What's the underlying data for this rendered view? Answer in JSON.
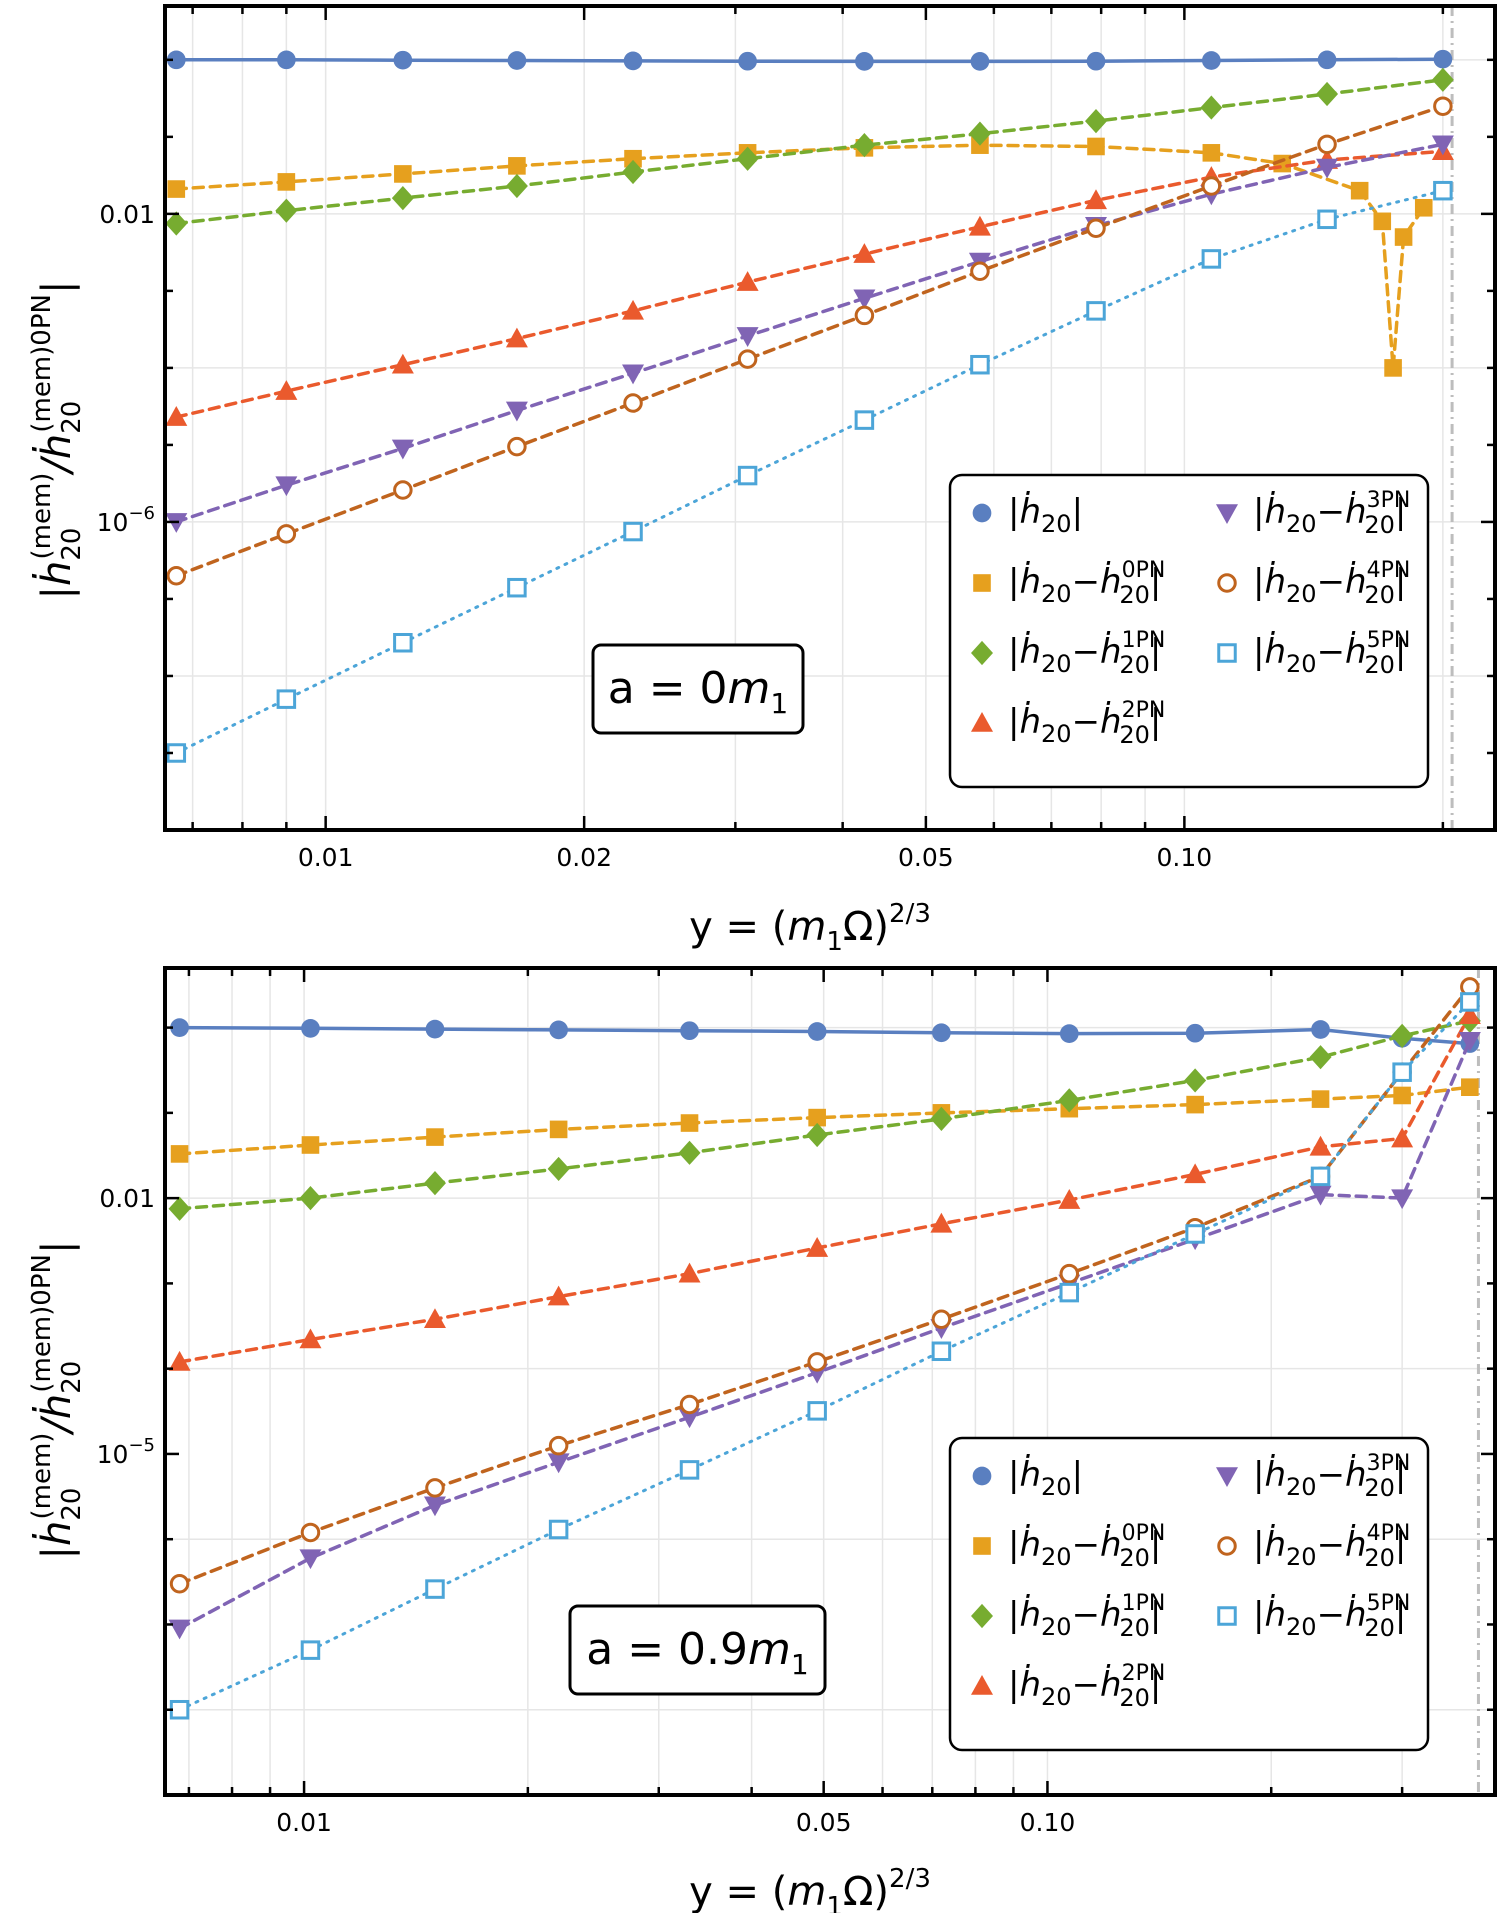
{
  "chart_data": [
    {
      "type": "line",
      "scale": {
        "x": "log",
        "y": "log"
      },
      "xlim": [
        0.0065,
        0.23
      ],
      "ylim": [
        1e-10,
        5
      ],
      "grid": true,
      "xlabel": "y = (m1Ω)^2/3",
      "ylabel": "|ḣ20(mem)/ḣ20(mem)0PN|",
      "xticks": [
        {
          "v": 0.01,
          "label": "0.01"
        },
        {
          "v": 0.02,
          "label": "0.02"
        },
        {
          "v": 0.05,
          "label": "0.05"
        },
        {
          "v": 0.1,
          "label": "0.10"
        }
      ],
      "yticks": [
        {
          "v": 0.01,
          "label": "0.01"
        },
        {
          "v": 1e-06,
          "label": "10^−6"
        }
      ],
      "annotation": "a = 0m1",
      "reference_line_x": 0.205,
      "legend_placement": "bottom-right",
      "series": [
        {
          "name": "|ḣ20|",
          "color": "#5a7fc0",
          "marker": "circle",
          "line": "solid",
          "points": [
            [
              0.0067,
              1.0
            ],
            [
              0.009,
              1.0
            ],
            [
              0.0123,
              0.99
            ],
            [
              0.0167,
              0.98
            ],
            [
              0.0228,
              0.97
            ],
            [
              0.031,
              0.96
            ],
            [
              0.0424,
              0.955
            ],
            [
              0.0578,
              0.955
            ],
            [
              0.0789,
              0.96
            ],
            [
              0.1075,
              0.98
            ],
            [
              0.1466,
              1.0
            ],
            [
              0.2,
              1.02
            ]
          ]
        },
        {
          "name": "|ḣ20−ḣ20^0PN|",
          "color": "#e6a01e",
          "marker": "square",
          "line": "dashed",
          "points": [
            [
              0.0067,
              0.021
            ],
            [
              0.009,
              0.026
            ],
            [
              0.0123,
              0.033
            ],
            [
              0.0167,
              0.042
            ],
            [
              0.0228,
              0.052
            ],
            [
              0.031,
              0.062
            ],
            [
              0.0424,
              0.072
            ],
            [
              0.0578,
              0.078
            ],
            [
              0.0789,
              0.075
            ],
            [
              0.1075,
              0.062
            ],
            [
              0.13,
              0.045
            ],
            [
              0.16,
              0.02
            ],
            [
              0.17,
              0.008
            ],
            [
              0.175,
              0.0001
            ],
            [
              0.18,
              0.005
            ],
            [
              0.19,
              0.012
            ]
          ]
        },
        {
          "name": "|ḣ20−ḣ20^1PN|",
          "color": "#77ac30",
          "marker": "diamond",
          "line": "dashed",
          "points": [
            [
              0.0067,
              0.0075
            ],
            [
              0.009,
              0.011
            ],
            [
              0.0123,
              0.016
            ],
            [
              0.0167,
              0.023
            ],
            [
              0.0228,
              0.035
            ],
            [
              0.031,
              0.052
            ],
            [
              0.0424,
              0.078
            ],
            [
              0.0578,
              0.11
            ],
            [
              0.0789,
              0.16
            ],
            [
              0.1075,
              0.24
            ],
            [
              0.1466,
              0.36
            ],
            [
              0.2,
              0.55
            ]
          ]
        },
        {
          "name": "|ḣ20−ḣ20^2PN|",
          "color": "#ea5a2d",
          "marker": "triangle-up",
          "line": "dashed",
          "points": [
            [
              0.0067,
              2.3e-05
            ],
            [
              0.009,
              5e-05
            ],
            [
              0.0123,
              0.00011
            ],
            [
              0.0167,
              0.00024
            ],
            [
              0.0228,
              0.00055
            ],
            [
              0.031,
              0.0013
            ],
            [
              0.0424,
              0.003
            ],
            [
              0.0578,
              0.0068
            ],
            [
              0.0789,
              0.015
            ],
            [
              0.1075,
              0.03
            ],
            [
              0.1466,
              0.05
            ],
            [
              0.2,
              0.065
            ]
          ]
        },
        {
          "name": "|ḣ20−ḣ20^3PN|",
          "color": "#8064b4",
          "marker": "triangle-down",
          "line": "dashed",
          "points": [
            [
              0.0067,
              1e-06
            ],
            [
              0.009,
              3e-06
            ],
            [
              0.0123,
              9e-06
            ],
            [
              0.0167,
              2.8e-05
            ],
            [
              0.0228,
              8.5e-05
            ],
            [
              0.031,
              0.00026
            ],
            [
              0.0424,
              0.0008
            ],
            [
              0.0578,
              0.0024
            ],
            [
              0.0789,
              0.007
            ],
            [
              0.1075,
              0.018
            ],
            [
              0.1466,
              0.04
            ],
            [
              0.2,
              0.08
            ]
          ]
        },
        {
          "name": "|ḣ20−ḣ20^4PN|",
          "color": "#c0641e",
          "marker": "open-circle",
          "line": "dashed",
          "points": [
            [
              0.0067,
              2e-07
            ],
            [
              0.009,
              7e-07
            ],
            [
              0.0123,
              2.6e-06
            ],
            [
              0.0167,
              9.5e-06
            ],
            [
              0.0228,
              3.5e-05
            ],
            [
              0.031,
              0.00013
            ],
            [
              0.0424,
              0.00048
            ],
            [
              0.0578,
              0.0018
            ],
            [
              0.0789,
              0.0065
            ],
            [
              0.1075,
              0.023
            ],
            [
              0.1466,
              0.08
            ],
            [
              0.2,
              0.25
            ]
          ]
        },
        {
          "name": "|ḣ20−ḣ20^5PN|",
          "color": "#4ca5d8",
          "marker": "open-square",
          "line": "dotted",
          "points": [
            [
              0.0067,
              1e-09
            ],
            [
              0.009,
              5e-09
            ],
            [
              0.0123,
              2.7e-08
            ],
            [
              0.0167,
              1.4e-07
            ],
            [
              0.0228,
              7.5e-07
            ],
            [
              0.031,
              4e-06
            ],
            [
              0.0424,
              2.1e-05
            ],
            [
              0.0578,
              0.00011
            ],
            [
              0.0789,
              0.00055
            ],
            [
              0.1075,
              0.0026
            ],
            [
              0.1466,
              0.0085
            ],
            [
              0.2,
              0.02
            ]
          ]
        }
      ]
    },
    {
      "type": "line",
      "scale": {
        "x": "log",
        "y": "log"
      },
      "xlim": [
        0.0065,
        0.4
      ],
      "ylim": [
        1e-09,
        5
      ],
      "grid": true,
      "xlabel": "y = (m1Ω)^2/3",
      "ylabel": "|ḣ20(mem)/ḣ20(mem)0PN|",
      "xticks": [
        {
          "v": 0.01,
          "label": "0.01"
        },
        {
          "v": 0.05,
          "label": "0.05"
        },
        {
          "v": 0.1,
          "label": "0.10"
        }
      ],
      "yticks": [
        {
          "v": 0.01,
          "label": "0.01"
        },
        {
          "v": 1e-05,
          "label": "10^−5"
        }
      ],
      "annotation": "a = 0.9m1",
      "reference_line_x": 0.38,
      "legend_placement": "bottom-right",
      "series": [
        {
          "name": "|ḣ20|",
          "color": "#5a7fc0",
          "marker": "circle",
          "line": "solid",
          "points": [
            [
              0.0068,
              1.0
            ],
            [
              0.0102,
              0.98
            ],
            [
              0.015,
              0.96
            ],
            [
              0.022,
              0.94
            ],
            [
              0.033,
              0.92
            ],
            [
              0.049,
              0.9
            ],
            [
              0.072,
              0.87
            ],
            [
              0.107,
              0.85
            ],
            [
              0.158,
              0.86
            ],
            [
              0.233,
              0.95
            ],
            [
              0.3,
              0.75
            ],
            [
              0.37,
              0.65
            ]
          ]
        },
        {
          "name": "|ḣ20−ḣ20^0PN|",
          "color": "#e6a01e",
          "marker": "square",
          "line": "dashed",
          "points": [
            [
              0.0068,
              0.033
            ],
            [
              0.0102,
              0.042
            ],
            [
              0.015,
              0.052
            ],
            [
              0.022,
              0.064
            ],
            [
              0.033,
              0.076
            ],
            [
              0.049,
              0.088
            ],
            [
              0.072,
              0.1
            ],
            [
              0.107,
              0.112
            ],
            [
              0.158,
              0.125
            ],
            [
              0.233,
              0.145
            ],
            [
              0.3,
              0.16
            ],
            [
              0.37,
              0.2
            ]
          ]
        },
        {
          "name": "|ḣ20−ḣ20^1PN|",
          "color": "#77ac30",
          "marker": "diamond",
          "line": "dashed",
          "points": [
            [
              0.0068,
              0.0075
            ],
            [
              0.0102,
              0.01
            ],
            [
              0.015,
              0.015
            ],
            [
              0.022,
              0.022
            ],
            [
              0.033,
              0.034
            ],
            [
              0.049,
              0.055
            ],
            [
              0.072,
              0.085
            ],
            [
              0.107,
              0.14
            ],
            [
              0.158,
              0.24
            ],
            [
              0.233,
              0.45
            ],
            [
              0.3,
              0.8
            ],
            [
              0.37,
              1.2
            ]
          ]
        },
        {
          "name": "|ḣ20−ḣ20^2PN|",
          "color": "#ea5a2d",
          "marker": "triangle-up",
          "line": "dashed",
          "points": [
            [
              0.0068,
              0.00012
            ],
            [
              0.0102,
              0.00022
            ],
            [
              0.015,
              0.00038
            ],
            [
              0.022,
              0.0007
            ],
            [
              0.033,
              0.0013
            ],
            [
              0.049,
              0.0026
            ],
            [
              0.072,
              0.005
            ],
            [
              0.107,
              0.0095
            ],
            [
              0.158,
              0.019
            ],
            [
              0.233,
              0.04
            ],
            [
              0.3,
              0.05
            ],
            [
              0.37,
              1.4
            ]
          ]
        },
        {
          "name": "|ḣ20−ḣ20^3PN|",
          "color": "#8064b4",
          "marker": "triangle-down",
          "line": "dashed",
          "points": [
            [
              0.0068,
              9e-08
            ],
            [
              0.0102,
              6e-07
            ],
            [
              0.015,
              2.5e-06
            ],
            [
              0.022,
              8e-06
            ],
            [
              0.033,
              2.7e-05
            ],
            [
              0.049,
              9e-05
            ],
            [
              0.072,
              0.0003
            ],
            [
              0.107,
              0.001
            ],
            [
              0.158,
              0.0033
            ],
            [
              0.233,
              0.011
            ],
            [
              0.3,
              0.01
            ],
            [
              0.37,
              0.7
            ]
          ]
        },
        {
          "name": "|ḣ20−ḣ20^4PN|",
          "color": "#c0641e",
          "marker": "open-circle",
          "line": "dashed",
          "points": [
            [
              0.0068,
              3e-07
            ],
            [
              0.0102,
              1.2e-06
            ],
            [
              0.015,
              4e-06
            ],
            [
              0.022,
              1.25e-05
            ],
            [
              0.033,
              3.8e-05
            ],
            [
              0.049,
              0.00012
            ],
            [
              0.072,
              0.00038
            ],
            [
              0.107,
              0.0013
            ],
            [
              0.158,
              0.0045
            ],
            [
              0.233,
              0.018
            ],
            [
              0.3,
              0.3
            ],
            [
              0.37,
              3.0
            ]
          ]
        },
        {
          "name": "|ḣ20−ḣ20^5PN|",
          "color": "#4ca5d8",
          "marker": "open-square",
          "line": "dotted",
          "points": [
            [
              0.0068,
              1e-08
            ],
            [
              0.0102,
              5e-08
            ],
            [
              0.015,
              2.6e-07
            ],
            [
              0.022,
              1.3e-06
            ],
            [
              0.033,
              6.5e-06
            ],
            [
              0.049,
              3.2e-05
            ],
            [
              0.072,
              0.00016
            ],
            [
              0.107,
              0.00078
            ],
            [
              0.158,
              0.0038
            ],
            [
              0.233,
              0.018
            ],
            [
              0.3,
              0.3
            ],
            [
              0.37,
              2.0
            ]
          ]
        }
      ]
    }
  ],
  "panels": [
    {
      "annotation_main": "a = 0",
      "annotation_sym": "m",
      "annotation_sub": "1",
      "ylabel_main": "|ḣ",
      "ylabel_sub": "20",
      "ylabel_sup1": "(mem)",
      "ylabel_mid": "/ḣ",
      "ylabel_sup2": "(mem)0PN",
      "ylabel_end": "|",
      "xlabel_pre": "y = (",
      "xlabel_sym": "m",
      "xlabel_sub": "1",
      "xlabel_post": "Ω)",
      "xlabel_sup": "2/3"
    },
    {
      "annotation_main": "a = 0.9",
      "annotation_sym": "m",
      "annotation_sub": "1",
      "ylabel_main": "|ḣ",
      "ylabel_sub": "20",
      "ylabel_sup1": "(mem)",
      "ylabel_mid": "/ḣ",
      "ylabel_sup2": "(mem)0PN",
      "ylabel_end": "|",
      "xlabel_pre": "y = (",
      "xlabel_sym": "m",
      "xlabel_sub": "1",
      "xlabel_post": "Ω)",
      "xlabel_sup": "2/3"
    }
  ],
  "legend": {
    "entries": [
      {
        "pre": "|ḣ",
        "sub": "20",
        "post": "|",
        "sup": ""
      },
      {
        "pre": "|ḣ",
        "sub": "20",
        "post": "−ḣ",
        "sup": "0PN"
      },
      {
        "pre": "|ḣ",
        "sub": "20",
        "post": "−ḣ",
        "sup": "1PN"
      },
      {
        "pre": "|ḣ",
        "sub": "20",
        "post": "−ḣ",
        "sup": "2PN"
      },
      {
        "pre": "|ḣ",
        "sub": "20",
        "post": "−ḣ",
        "sup": "3PN"
      },
      {
        "pre": "|ḣ",
        "sub": "20",
        "post": "−ḣ",
        "sup": "4PN"
      },
      {
        "pre": "|ḣ",
        "sub": "20",
        "post": "−ḣ",
        "sup": "5PN"
      }
    ],
    "sub2": "20",
    "end": "|"
  }
}
